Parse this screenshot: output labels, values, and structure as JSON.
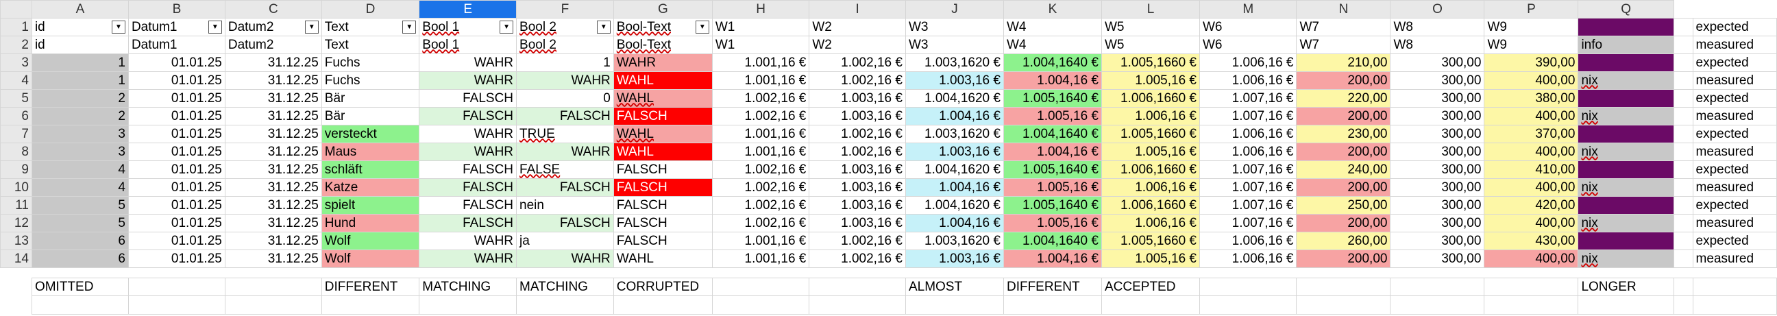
{
  "columns": [
    "",
    "A",
    "B",
    "C",
    "D",
    "E",
    "F",
    "G",
    "H",
    "I",
    "J",
    "K",
    "L",
    "M",
    "N",
    "O",
    "P",
    "Q",
    "",
    ""
  ],
  "selected_column": "E",
  "header_row": {
    "num": "1",
    "a": "id",
    "b": "Datum1",
    "c": "Datum2",
    "d": "Text",
    "e": "Bool 1",
    "f": "Bool 2",
    "g": "Bool-Text",
    "h": "W1",
    "i": "W2",
    "j": "W3",
    "k": "W4",
    "l": "W5",
    "m": "W6",
    "n": "W7",
    "o": "W8",
    "p": "W9",
    "s": "expected"
  },
  "row2": {
    "num": "2",
    "a": "id",
    "b": "Datum1",
    "c": "Datum2",
    "d": "Text",
    "e": "Bool 1",
    "f": "Bool 2",
    "g": "Bool-Text",
    "h": "W1",
    "i": "W2",
    "j": "W3",
    "k": "W4",
    "l": "W5",
    "m": "W6",
    "n": "W7",
    "o": "W8",
    "p": "W9",
    "q": "info",
    "s": "measured"
  },
  "rows": [
    {
      "num": "3",
      "a": "1",
      "b": "01.01.25",
      "c": "31.12.25",
      "d": "Fuchs",
      "e": "WAHR",
      "f": "1",
      "fx": "",
      "g": "WAHR",
      "h": "1.001,16 €",
      "i": "1.002,16 €",
      "j": "1.003,1620 €",
      "k": "1.004,1640 €",
      "l": "1.005,1660 €",
      "m": "1.006,16 €",
      "n": "210,00",
      "o": "300,00",
      "p": "390,00",
      "q": "",
      "s": "expected"
    },
    {
      "num": "4",
      "a": "1",
      "b": "01.01.25",
      "c": "31.12.25",
      "d": "Fuchs",
      "e": "WAHR",
      "f": "WAHR",
      "fx": "",
      "g": "WAHL",
      "h": "1.001,16 €",
      "i": "1.002,16 €",
      "j": "1.003,16 €",
      "k": "1.004,16 €",
      "l": "1.005,16 €",
      "m": "1.006,16 €",
      "n": "200,00",
      "o": "300,00",
      "p": "400,00",
      "q": "nix",
      "s": "measured"
    },
    {
      "num": "5",
      "a": "2",
      "b": "01.01.25",
      "c": "31.12.25",
      "d": "Bär",
      "e": "FALSCH",
      "f": "0",
      "fx": "",
      "g": "WAHL",
      "h": "1.002,16 €",
      "i": "1.003,16 €",
      "j": "1.004,1620 €",
      "k": "1.005,1640 €",
      "l": "1.006,1660 €",
      "m": "1.007,16 €",
      "n": "220,00",
      "o": "300,00",
      "p": "380,00",
      "q": "",
      "s": "expected"
    },
    {
      "num": "6",
      "a": "2",
      "b": "01.01.25",
      "c": "31.12.25",
      "d": "Bär",
      "e": "FALSCH",
      "f": "FALSCH",
      "fx": "",
      "g": "FALSCH",
      "h": "1.002,16 €",
      "i": "1.003,16 €",
      "j": "1.004,16 €",
      "k": "1.005,16 €",
      "l": "1.006,16 €",
      "m": "1.007,16 €",
      "n": "200,00",
      "o": "300,00",
      "p": "400,00",
      "q": "nix",
      "s": "measured"
    },
    {
      "num": "7",
      "a": "3",
      "b": "01.01.25",
      "c": "31.12.25",
      "d": "versteckt",
      "e": "WAHR",
      "f": "",
      "fx": "TRUE",
      "g": "WAHL",
      "h": "1.001,16 €",
      "i": "1.002,16 €",
      "j": "1.003,1620 €",
      "k": "1.004,1640 €",
      "l": "1.005,1660 €",
      "m": "1.006,16 €",
      "n": "230,00",
      "o": "300,00",
      "p": "370,00",
      "q": "",
      "s": "expected"
    },
    {
      "num": "8",
      "a": "3",
      "b": "01.01.25",
      "c": "31.12.25",
      "d": "Maus",
      "e": "WAHR",
      "f": "WAHR",
      "fx": "",
      "g": "WAHL",
      "h": "1.001,16 €",
      "i": "1.002,16 €",
      "j": "1.003,16 €",
      "k": "1.004,16 €",
      "l": "1.005,16 €",
      "m": "1.006,16 €",
      "n": "200,00",
      "o": "300,00",
      "p": "400,00",
      "q": "nix",
      "s": "measured"
    },
    {
      "num": "9",
      "a": "4",
      "b": "01.01.25",
      "c": "31.12.25",
      "d": "schläft",
      "e": "FALSCH",
      "f": "",
      "fx": "FALSE",
      "g": "FALSCH",
      "h": "1.002,16 €",
      "i": "1.003,16 €",
      "j": "1.004,1620 €",
      "k": "1.005,1640 €",
      "l": "1.006,1660 €",
      "m": "1.007,16 €",
      "n": "240,00",
      "o": "300,00",
      "p": "410,00",
      "q": "",
      "s": "expected"
    },
    {
      "num": "10",
      "a": "4",
      "b": "01.01.25",
      "c": "31.12.25",
      "d": "Katze",
      "e": "FALSCH",
      "f": "FALSCH",
      "fx": "",
      "g": "FALSCH",
      "h": "1.002,16 €",
      "i": "1.003,16 €",
      "j": "1.004,16 €",
      "k": "1.005,16 €",
      "l": "1.006,16 €",
      "m": "1.007,16 €",
      "n": "200,00",
      "o": "300,00",
      "p": "400,00",
      "q": "nix",
      "s": "measured"
    },
    {
      "num": "11",
      "a": "5",
      "b": "01.01.25",
      "c": "31.12.25",
      "d": "spielt",
      "e": "FALSCH",
      "f": "",
      "fx": "nein",
      "g": "FALSCH",
      "h": "1.002,16 €",
      "i": "1.003,16 €",
      "j": "1.004,1620 €",
      "k": "1.005,1640 €",
      "l": "1.006,1660 €",
      "m": "1.007,16 €",
      "n": "250,00",
      "o": "300,00",
      "p": "420,00",
      "q": "",
      "s": "expected"
    },
    {
      "num": "12",
      "a": "5",
      "b": "01.01.25",
      "c": "31.12.25",
      "d": "Hund",
      "e": "FALSCH",
      "f": "FALSCH",
      "fx": "",
      "g": "FALSCH",
      "h": "1.002,16 €",
      "i": "1.003,16 €",
      "j": "1.004,16 €",
      "k": "1.005,16 €",
      "l": "1.006,16 €",
      "m": "1.007,16 €",
      "n": "200,00",
      "o": "300,00",
      "p": "400,00",
      "q": "nix",
      "s": "measured"
    },
    {
      "num": "13",
      "a": "6",
      "b": "01.01.25",
      "c": "31.12.25",
      "d": "Wolf",
      "e": "WAHR",
      "f": "",
      "fx": "ja",
      "g": "FALSCH",
      "h": "1.001,16 €",
      "i": "1.002,16 €",
      "j": "1.003,1620 €",
      "k": "1.004,1640 €",
      "l": "1.005,1660 €",
      "m": "1.006,16 €",
      "n": "260,00",
      "o": "300,00",
      "p": "430,00",
      "q": "",
      "s": "expected"
    },
    {
      "num": "14",
      "a": "6",
      "b": "01.01.25",
      "c": "31.12.25",
      "d": "Wolf",
      "e": "WAHR",
      "f": "WAHR",
      "fx": "",
      "g": "WAHL",
      "h": "1.001,16 €",
      "i": "1.002,16 €",
      "j": "1.003,16 €",
      "k": "1.004,16 €",
      "l": "1.005,16 €",
      "m": "1.006,16 €",
      "n": "200,00",
      "o": "300,00",
      "p": "400,00",
      "q": "nix",
      "s": "measured"
    }
  ],
  "summary": {
    "a": "OMITTED",
    "d": "DIFFERENT",
    "e": "MATCHING",
    "f": "MATCHING",
    "g": "CORRUPTED",
    "j": "ALMOST",
    "k": "DIFFERENT",
    "l": "ACCEPTED",
    "q": "LONGER"
  },
  "colors": {
    "selected_header": "#1a73e8",
    "purple_expected": "#6b0a66",
    "red": "#fe0000",
    "light_red": "#f6a3a3",
    "green": "#8df28d",
    "light_green": "#dcf5dc",
    "yellow": "#fdf7a6",
    "cyan": "#c6f1f9",
    "gray": "#c8c8c8"
  },
  "icons": [
    "autofilter-dropdown-icon"
  ]
}
